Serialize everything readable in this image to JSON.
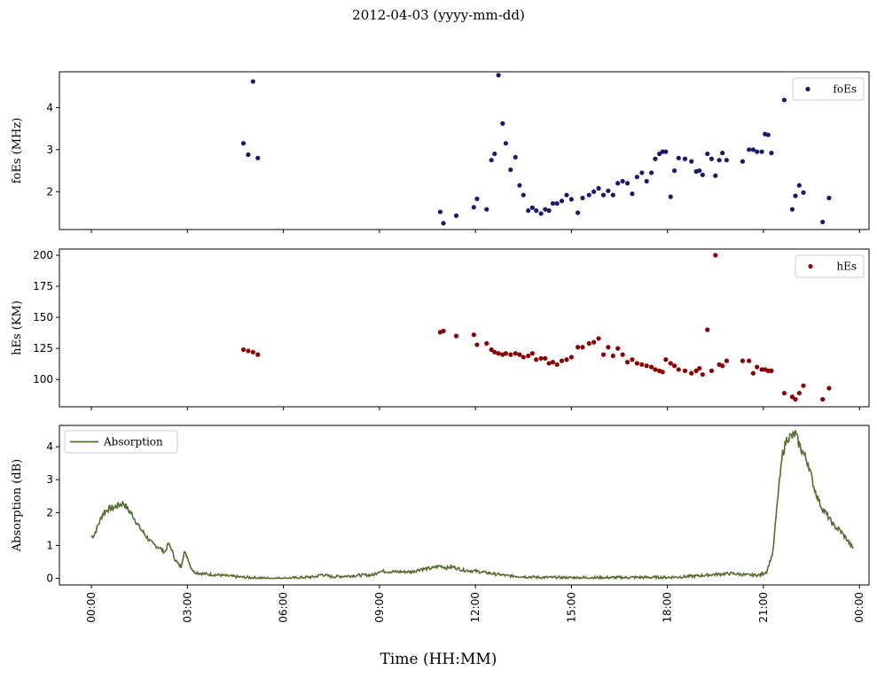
{
  "figure": {
    "title": "2012-04-03 (yyyy-mm-dd)",
    "xlabel": "Time (HH:MM)"
  },
  "chart_data": [
    {
      "type": "scatter",
      "ylabel": "foEs (MHz)",
      "legend": "top-right",
      "color": "#191970",
      "xlim": [
        -1.0,
        24.3
      ],
      "ylim": [
        1.1,
        4.85
      ],
      "yticks": [
        2,
        3,
        4
      ],
      "series": [
        {
          "name": "foEs",
          "x": [
            4.75,
            4.9,
            5.05,
            5.2,
            10.9,
            11.0,
            11.4,
            11.95,
            12.05,
            12.35,
            12.5,
            12.6,
            12.72,
            12.85,
            12.95,
            13.1,
            13.25,
            13.38,
            13.5,
            13.65,
            13.78,
            13.9,
            14.05,
            14.18,
            14.3,
            14.42,
            14.55,
            14.7,
            14.85,
            15.0,
            15.2,
            15.35,
            15.55,
            15.7,
            15.85,
            16.0,
            16.15,
            16.3,
            16.45,
            16.6,
            16.75,
            16.9,
            17.05,
            17.2,
            17.35,
            17.5,
            17.62,
            17.75,
            17.85,
            17.95,
            18.1,
            18.22,
            18.35,
            18.55,
            18.75,
            18.9,
            19.0,
            19.1,
            19.25,
            19.38,
            19.5,
            19.62,
            19.72,
            19.85,
            20.35,
            20.55,
            20.68,
            20.8,
            20.95,
            21.05,
            21.15,
            21.25,
            21.65,
            21.9,
            22.0,
            22.12,
            22.25,
            22.85,
            23.05
          ],
          "y": [
            3.15,
            2.88,
            4.62,
            2.8,
            1.52,
            1.25,
            1.43,
            1.63,
            1.83,
            1.58,
            2.75,
            2.9,
            4.77,
            3.62,
            3.15,
            2.52,
            2.82,
            2.15,
            1.92,
            1.55,
            1.62,
            1.55,
            1.48,
            1.58,
            1.55,
            1.72,
            1.72,
            1.78,
            1.92,
            1.82,
            1.5,
            1.85,
            1.92,
            2.0,
            2.08,
            1.92,
            2.02,
            1.92,
            2.2,
            2.25,
            2.2,
            1.95,
            2.35,
            2.45,
            2.25,
            2.45,
            2.78,
            2.9,
            2.95,
            2.95,
            1.88,
            2.5,
            2.8,
            2.78,
            2.72,
            2.48,
            2.5,
            2.4,
            2.9,
            2.78,
            2.38,
            2.75,
            2.92,
            2.75,
            2.72,
            3.0,
            3.0,
            2.95,
            2.95,
            3.37,
            3.35,
            2.92,
            4.18,
            1.58,
            1.9,
            2.15,
            1.98,
            1.28,
            1.85
          ]
        }
      ]
    },
    {
      "type": "scatter",
      "ylabel": "hEs (KM)",
      "legend": "top-right",
      "color": "#8b0000",
      "xlim": [
        -1.0,
        24.3
      ],
      "ylim": [
        78,
        205
      ],
      "yticks": [
        100,
        125,
        150,
        175,
        200
      ],
      "series": [
        {
          "name": "hEs",
          "x": [
            4.75,
            4.9,
            5.05,
            5.2,
            10.9,
            11.0,
            11.4,
            11.95,
            12.05,
            12.35,
            12.5,
            12.6,
            12.72,
            12.85,
            12.95,
            13.1,
            13.25,
            13.38,
            13.5,
            13.65,
            13.78,
            13.9,
            14.05,
            14.18,
            14.3,
            14.42,
            14.55,
            14.7,
            14.85,
            15.0,
            15.2,
            15.35,
            15.55,
            15.7,
            15.85,
            16.0,
            16.15,
            16.3,
            16.45,
            16.6,
            16.75,
            16.9,
            17.05,
            17.2,
            17.35,
            17.5,
            17.62,
            17.75,
            17.85,
            17.95,
            18.1,
            18.22,
            18.35,
            18.55,
            18.75,
            18.9,
            19.0,
            19.1,
            19.25,
            19.38,
            19.5,
            19.62,
            19.72,
            19.85,
            20.35,
            20.55,
            20.68,
            20.8,
            20.95,
            21.05,
            21.15,
            21.25,
            21.65,
            21.9,
            22.0,
            22.12,
            22.25,
            22.85,
            23.05
          ],
          "y": [
            124,
            123,
            122,
            120,
            138,
            139,
            135,
            136,
            128,
            129,
            124,
            122,
            121,
            120,
            121,
            120,
            121,
            120,
            118,
            119,
            121,
            116,
            117,
            117,
            113,
            114,
            112,
            115,
            116,
            118,
            126,
            126,
            129,
            130,
            133,
            120,
            126,
            119,
            125,
            120,
            114,
            116,
            113,
            112,
            111,
            110,
            108,
            107,
            106,
            116,
            113,
            111,
            108,
            107,
            105,
            107,
            109,
            104,
            140,
            107,
            200,
            112,
            111,
            115,
            115,
            115,
            105,
            110,
            108,
            108,
            107,
            107,
            89,
            86,
            84,
            89,
            95,
            84,
            93
          ]
        }
      ]
    },
    {
      "type": "line",
      "ylabel": "Absorption (dB)",
      "legend": "top-left",
      "color": "#556b2f",
      "xlim": [
        -1.0,
        24.3
      ],
      "ylim": [
        -0.2,
        4.65
      ],
      "yticks": [
        0,
        1,
        2,
        3,
        4
      ],
      "xticks": [
        "00:00",
        "03:00",
        "06:00",
        "09:00",
        "12:00",
        "15:00",
        "18:00",
        "21:00",
        "00:00"
      ],
      "series": [
        {
          "name": "Absorption",
          "x": [
            0.0,
            0.1,
            0.2,
            0.35,
            0.5,
            0.7,
            0.9,
            1.0,
            1.1,
            1.3,
            1.5,
            1.7,
            1.9,
            2.1,
            2.3,
            2.4,
            2.5,
            2.6,
            2.7,
            2.8,
            2.9,
            3.0,
            3.1,
            3.2,
            3.4,
            3.7,
            4.0,
            4.5,
            5.0,
            5.5,
            6.0,
            6.5,
            7.0,
            7.2,
            7.5,
            8.0,
            8.5,
            8.8,
            9.0,
            9.5,
            10.0,
            10.3,
            10.6,
            10.9,
            11.1,
            11.3,
            11.6,
            12.0,
            12.5,
            13.0,
            14.0,
            15.0,
            16.0,
            17.0,
            18.0,
            18.5,
            19.0,
            19.5,
            20.0,
            20.5,
            20.9,
            21.1,
            21.3,
            21.45,
            21.6,
            21.75,
            21.9,
            22.0,
            22.1,
            22.25,
            22.4,
            22.6,
            22.8,
            23.0,
            23.2,
            23.4,
            23.6,
            23.8
          ],
          "y": [
            1.25,
            1.35,
            1.6,
            1.95,
            2.1,
            2.15,
            2.25,
            2.3,
            2.15,
            1.9,
            1.55,
            1.3,
            1.05,
            0.95,
            0.8,
            1.05,
            0.9,
            0.6,
            0.45,
            0.35,
            0.8,
            0.65,
            0.35,
            0.2,
            0.15,
            0.12,
            0.1,
            0.05,
            0.02,
            0.0,
            0.0,
            0.02,
            0.05,
            0.12,
            0.05,
            0.07,
            0.1,
            0.1,
            0.22,
            0.2,
            0.2,
            0.28,
            0.3,
            0.38,
            0.32,
            0.35,
            0.25,
            0.22,
            0.15,
            0.08,
            0.03,
            0.02,
            0.02,
            0.03,
            0.03,
            0.05,
            0.08,
            0.12,
            0.15,
            0.1,
            0.1,
            0.2,
            0.8,
            2.5,
            3.8,
            4.3,
            4.3,
            4.4,
            4.1,
            3.8,
            3.5,
            2.7,
            2.2,
            1.9,
            1.6,
            1.45,
            1.2,
            0.9
          ]
        }
      ]
    }
  ]
}
